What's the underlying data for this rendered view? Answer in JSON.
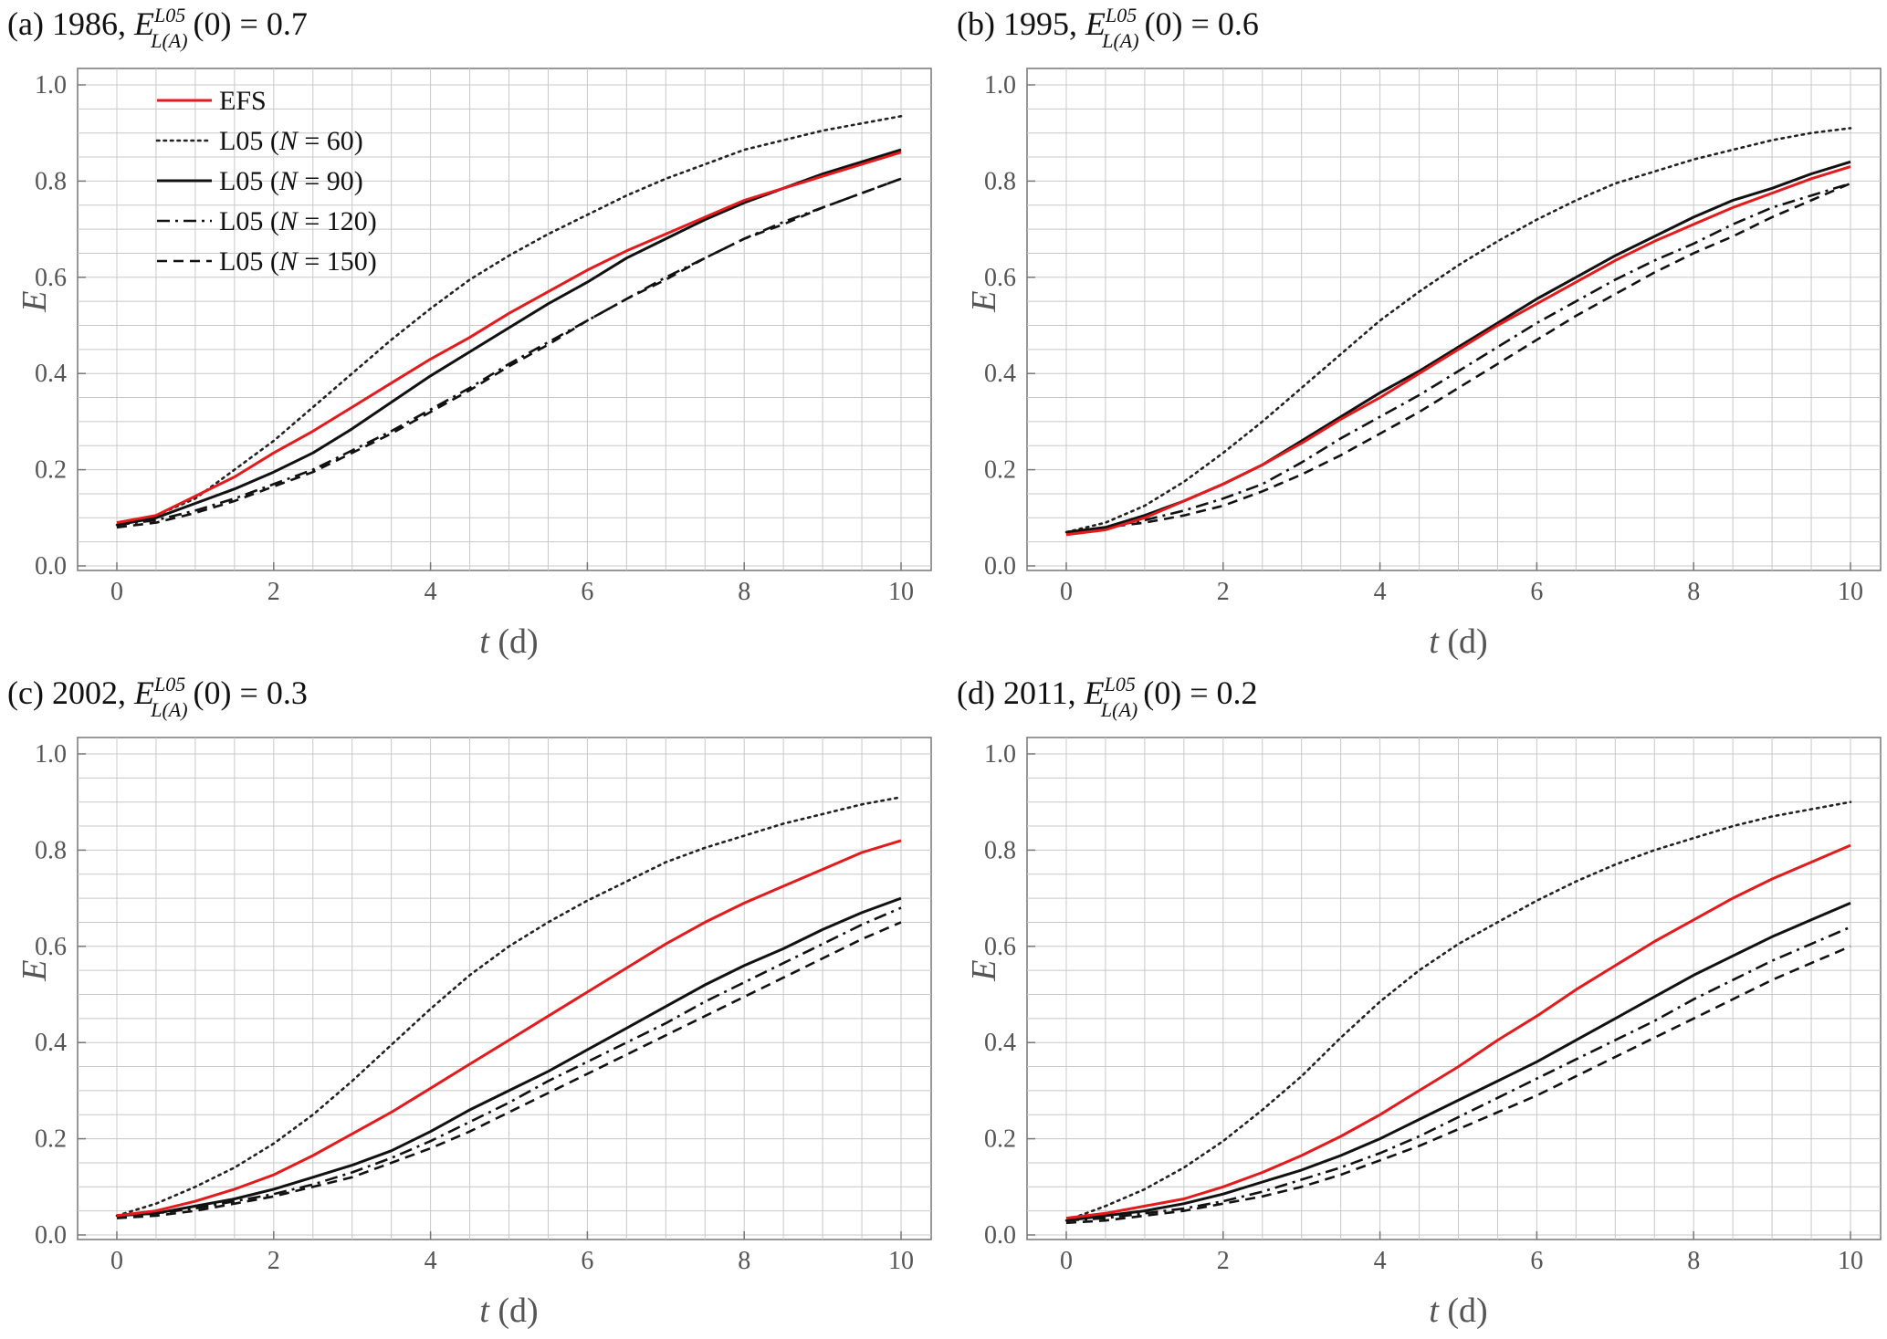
{
  "chart_data": [
    {
      "type": "line",
      "id": "a",
      "title": {
        "prefix": "(a) 1986,  ",
        "symbol": "E",
        "superscript": "L05",
        "subscript": "L(A)",
        "suffix": "(0) = 0.7"
      },
      "xlabel": {
        "var": "t",
        "unit": " (d)"
      },
      "ylabel": "E",
      "xlim": [
        0,
        10
      ],
      "ylim": [
        0,
        1
      ],
      "xticks": [
        "0",
        "2",
        "4",
        "6",
        "8",
        "10"
      ],
      "yticks": [
        "0.0",
        "0.2",
        "0.4",
        "0.6",
        "0.8",
        "1.0"
      ],
      "grid": true,
      "legend": {
        "placement": "top-left",
        "show": true
      },
      "x": [
        0,
        0.5,
        1,
        1.5,
        2,
        2.5,
        3,
        3.5,
        4,
        4.5,
        5,
        5.5,
        6,
        6.5,
        7,
        7.5,
        8,
        8.5,
        9,
        9.5,
        10
      ],
      "series": [
        {
          "name": "EFS",
          "style": "red",
          "values": [
            0.09,
            0.105,
            0.145,
            0.185,
            0.235,
            0.28,
            0.33,
            0.38,
            0.43,
            0.475,
            0.525,
            0.57,
            0.615,
            0.655,
            0.69,
            0.725,
            0.76,
            0.785,
            0.81,
            0.835,
            0.86
          ]
        },
        {
          "name": "L05 (N = 60)",
          "label_pre": "L05 (",
          "label_it": "N",
          "label_post": " = 60)",
          "style": "dotted",
          "values": [
            0.085,
            0.105,
            0.14,
            0.2,
            0.26,
            0.33,
            0.4,
            0.47,
            0.535,
            0.595,
            0.645,
            0.69,
            0.73,
            0.77,
            0.805,
            0.835,
            0.865,
            0.885,
            0.905,
            0.92,
            0.935
          ]
        },
        {
          "name": "L05 (N = 90)",
          "label_pre": "L05 (",
          "label_it": "N",
          "label_post": " = 90)",
          "style": "solid",
          "values": [
            0.085,
            0.1,
            0.13,
            0.16,
            0.195,
            0.235,
            0.285,
            0.34,
            0.395,
            0.445,
            0.495,
            0.545,
            0.59,
            0.64,
            0.68,
            0.72,
            0.755,
            0.785,
            0.815,
            0.84,
            0.865
          ]
        },
        {
          "name": "L05 (N = 120)",
          "label_pre": "L05 (",
          "label_it": "N",
          "label_post": " = 120)",
          "style": "dashdot",
          "values": [
            0.085,
            0.095,
            0.115,
            0.14,
            0.17,
            0.2,
            0.24,
            0.28,
            0.325,
            0.37,
            0.42,
            0.465,
            0.51,
            0.555,
            0.6,
            0.64,
            0.68,
            0.715,
            0.745,
            0.775,
            0.805
          ]
        },
        {
          "name": "L05 (N = 150)",
          "label_pre": "L05 (",
          "label_it": "N",
          "label_post": " = 150)",
          "style": "dashed",
          "values": [
            0.08,
            0.09,
            0.11,
            0.135,
            0.165,
            0.195,
            0.235,
            0.275,
            0.32,
            0.365,
            0.415,
            0.46,
            0.51,
            0.555,
            0.595,
            0.64,
            0.68,
            0.71,
            0.745,
            0.775,
            0.805
          ]
        }
      ]
    },
    {
      "type": "line",
      "id": "b",
      "title": {
        "prefix": "(b) 1995,  ",
        "symbol": "E",
        "superscript": "L05",
        "subscript": "L(A)",
        "suffix": "(0) = 0.6"
      },
      "xlabel": {
        "var": "t",
        "unit": " (d)"
      },
      "ylabel": "E",
      "xlim": [
        0,
        10
      ],
      "ylim": [
        0,
        1
      ],
      "xticks": [
        "0",
        "2",
        "4",
        "6",
        "8",
        "10"
      ],
      "yticks": [
        "0.0",
        "0.2",
        "0.4",
        "0.6",
        "0.8",
        "1.0"
      ],
      "grid": true,
      "legend": {
        "show": false
      },
      "x": [
        0,
        0.5,
        1,
        1.5,
        2,
        2.5,
        3,
        3.5,
        4,
        4.5,
        5,
        5.5,
        6,
        6.5,
        7,
        7.5,
        8,
        8.5,
        9,
        9.5,
        10
      ],
      "series": [
        {
          "name": "EFS",
          "style": "red",
          "values": [
            0.065,
            0.075,
            0.1,
            0.135,
            0.17,
            0.21,
            0.255,
            0.305,
            0.35,
            0.4,
            0.45,
            0.5,
            0.545,
            0.59,
            0.635,
            0.675,
            0.71,
            0.745,
            0.775,
            0.805,
            0.83
          ]
        },
        {
          "name": "L05 (N = 60)",
          "style": "dotted",
          "values": [
            0.07,
            0.09,
            0.125,
            0.175,
            0.235,
            0.3,
            0.37,
            0.44,
            0.51,
            0.57,
            0.625,
            0.675,
            0.72,
            0.76,
            0.795,
            0.82,
            0.845,
            0.865,
            0.885,
            0.9,
            0.91
          ]
        },
        {
          "name": "L05 (N = 90)",
          "style": "solid",
          "values": [
            0.07,
            0.08,
            0.105,
            0.135,
            0.17,
            0.21,
            0.26,
            0.31,
            0.36,
            0.405,
            0.455,
            0.505,
            0.555,
            0.6,
            0.645,
            0.685,
            0.725,
            0.76,
            0.785,
            0.815,
            0.84
          ]
        },
        {
          "name": "L05 (N = 120)",
          "style": "dashdot",
          "values": [
            0.07,
            0.08,
            0.095,
            0.115,
            0.14,
            0.17,
            0.215,
            0.265,
            0.31,
            0.355,
            0.405,
            0.455,
            0.505,
            0.55,
            0.595,
            0.635,
            0.67,
            0.71,
            0.745,
            0.77,
            0.795
          ]
        },
        {
          "name": "L05 (N = 150)",
          "style": "dashed",
          "values": [
            0.07,
            0.08,
            0.09,
            0.105,
            0.125,
            0.155,
            0.19,
            0.23,
            0.275,
            0.32,
            0.37,
            0.42,
            0.47,
            0.52,
            0.565,
            0.61,
            0.65,
            0.685,
            0.725,
            0.76,
            0.795
          ]
        }
      ]
    },
    {
      "type": "line",
      "id": "c",
      "title": {
        "prefix": "(c) 2002,  ",
        "symbol": "E",
        "superscript": "L05",
        "subscript": "L(A)",
        "suffix": "(0) = 0.3"
      },
      "xlabel": {
        "var": "t",
        "unit": " (d)"
      },
      "ylabel": "E",
      "xlim": [
        0,
        10
      ],
      "ylim": [
        0,
        1
      ],
      "xticks": [
        "0",
        "2",
        "4",
        "6",
        "8",
        "10"
      ],
      "yticks": [
        "0.0",
        "0.2",
        "0.4",
        "0.6",
        "0.8",
        "1.0"
      ],
      "grid": true,
      "legend": {
        "show": false
      },
      "x": [
        0,
        0.5,
        1,
        1.5,
        2,
        2.5,
        3,
        3.5,
        4,
        4.5,
        5,
        5.5,
        6,
        6.5,
        7,
        7.5,
        8,
        8.5,
        9,
        9.5,
        10
      ],
      "series": [
        {
          "name": "EFS",
          "style": "red",
          "values": [
            0.04,
            0.05,
            0.07,
            0.095,
            0.125,
            0.165,
            0.21,
            0.255,
            0.305,
            0.355,
            0.405,
            0.455,
            0.505,
            0.555,
            0.605,
            0.65,
            0.69,
            0.725,
            0.76,
            0.795,
            0.82
          ]
        },
        {
          "name": "L05 (N = 60)",
          "style": "dotted",
          "values": [
            0.04,
            0.065,
            0.1,
            0.14,
            0.19,
            0.25,
            0.32,
            0.395,
            0.47,
            0.54,
            0.6,
            0.65,
            0.695,
            0.735,
            0.775,
            0.805,
            0.83,
            0.855,
            0.875,
            0.895,
            0.91
          ]
        },
        {
          "name": "L05 (N = 90)",
          "style": "solid",
          "values": [
            0.04,
            0.045,
            0.06,
            0.075,
            0.095,
            0.12,
            0.145,
            0.175,
            0.215,
            0.26,
            0.3,
            0.34,
            0.385,
            0.43,
            0.475,
            0.52,
            0.56,
            0.595,
            0.635,
            0.67,
            0.7
          ]
        },
        {
          "name": "L05 (N = 120)",
          "style": "dashdot",
          "values": [
            0.04,
            0.045,
            0.055,
            0.07,
            0.085,
            0.105,
            0.13,
            0.16,
            0.195,
            0.235,
            0.275,
            0.32,
            0.36,
            0.4,
            0.44,
            0.485,
            0.525,
            0.565,
            0.605,
            0.645,
            0.68
          ]
        },
        {
          "name": "L05 (N = 150)",
          "style": "dashed",
          "values": [
            0.035,
            0.04,
            0.05,
            0.065,
            0.08,
            0.1,
            0.12,
            0.15,
            0.18,
            0.215,
            0.255,
            0.295,
            0.335,
            0.375,
            0.415,
            0.455,
            0.495,
            0.535,
            0.575,
            0.615,
            0.65
          ]
        }
      ]
    },
    {
      "type": "line",
      "id": "d",
      "title": {
        "prefix": "(d) 2011,  ",
        "symbol": "E",
        "superscript": "L05",
        "subscript": "L(A)",
        "suffix": "(0) = 0.2"
      },
      "xlabel": {
        "var": "t",
        "unit": " (d)"
      },
      "ylabel": "E",
      "xlim": [
        0,
        10
      ],
      "ylim": [
        0,
        1
      ],
      "xticks": [
        "0",
        "2",
        "4",
        "6",
        "8",
        "10"
      ],
      "yticks": [
        "0.0",
        "0.2",
        "0.4",
        "0.6",
        "0.8",
        "1.0"
      ],
      "grid": true,
      "legend": {
        "show": false
      },
      "x": [
        0,
        0.5,
        1,
        1.5,
        2,
        2.5,
        3,
        3.5,
        4,
        4.5,
        5,
        5.5,
        6,
        6.5,
        7,
        7.5,
        8,
        8.5,
        9,
        9.5,
        10
      ],
      "series": [
        {
          "name": "EFS",
          "style": "red",
          "values": [
            0.035,
            0.045,
            0.06,
            0.075,
            0.1,
            0.13,
            0.165,
            0.205,
            0.25,
            0.3,
            0.35,
            0.405,
            0.455,
            0.51,
            0.56,
            0.61,
            0.655,
            0.7,
            0.74,
            0.775,
            0.81
          ]
        },
        {
          "name": "L05 (N = 60)",
          "style": "dotted",
          "values": [
            0.03,
            0.06,
            0.095,
            0.14,
            0.195,
            0.26,
            0.33,
            0.41,
            0.485,
            0.55,
            0.605,
            0.65,
            0.695,
            0.735,
            0.77,
            0.8,
            0.825,
            0.85,
            0.87,
            0.885,
            0.9
          ]
        },
        {
          "name": "L05 (N = 90)",
          "style": "solid",
          "values": [
            0.03,
            0.04,
            0.05,
            0.065,
            0.085,
            0.11,
            0.135,
            0.165,
            0.2,
            0.24,
            0.28,
            0.32,
            0.36,
            0.405,
            0.45,
            0.495,
            0.54,
            0.58,
            0.62,
            0.655,
            0.69
          ]
        },
        {
          "name": "L05 (N = 120)",
          "style": "dashdot",
          "values": [
            0.03,
            0.035,
            0.045,
            0.055,
            0.07,
            0.09,
            0.115,
            0.14,
            0.17,
            0.205,
            0.245,
            0.285,
            0.325,
            0.365,
            0.405,
            0.445,
            0.49,
            0.53,
            0.57,
            0.605,
            0.64
          ]
        },
        {
          "name": "L05 (N = 150)",
          "style": "dashed",
          "values": [
            0.025,
            0.03,
            0.04,
            0.05,
            0.065,
            0.08,
            0.1,
            0.125,
            0.155,
            0.185,
            0.22,
            0.255,
            0.29,
            0.33,
            0.37,
            0.41,
            0.45,
            0.49,
            0.53,
            0.565,
            0.6
          ]
        }
      ]
    }
  ]
}
